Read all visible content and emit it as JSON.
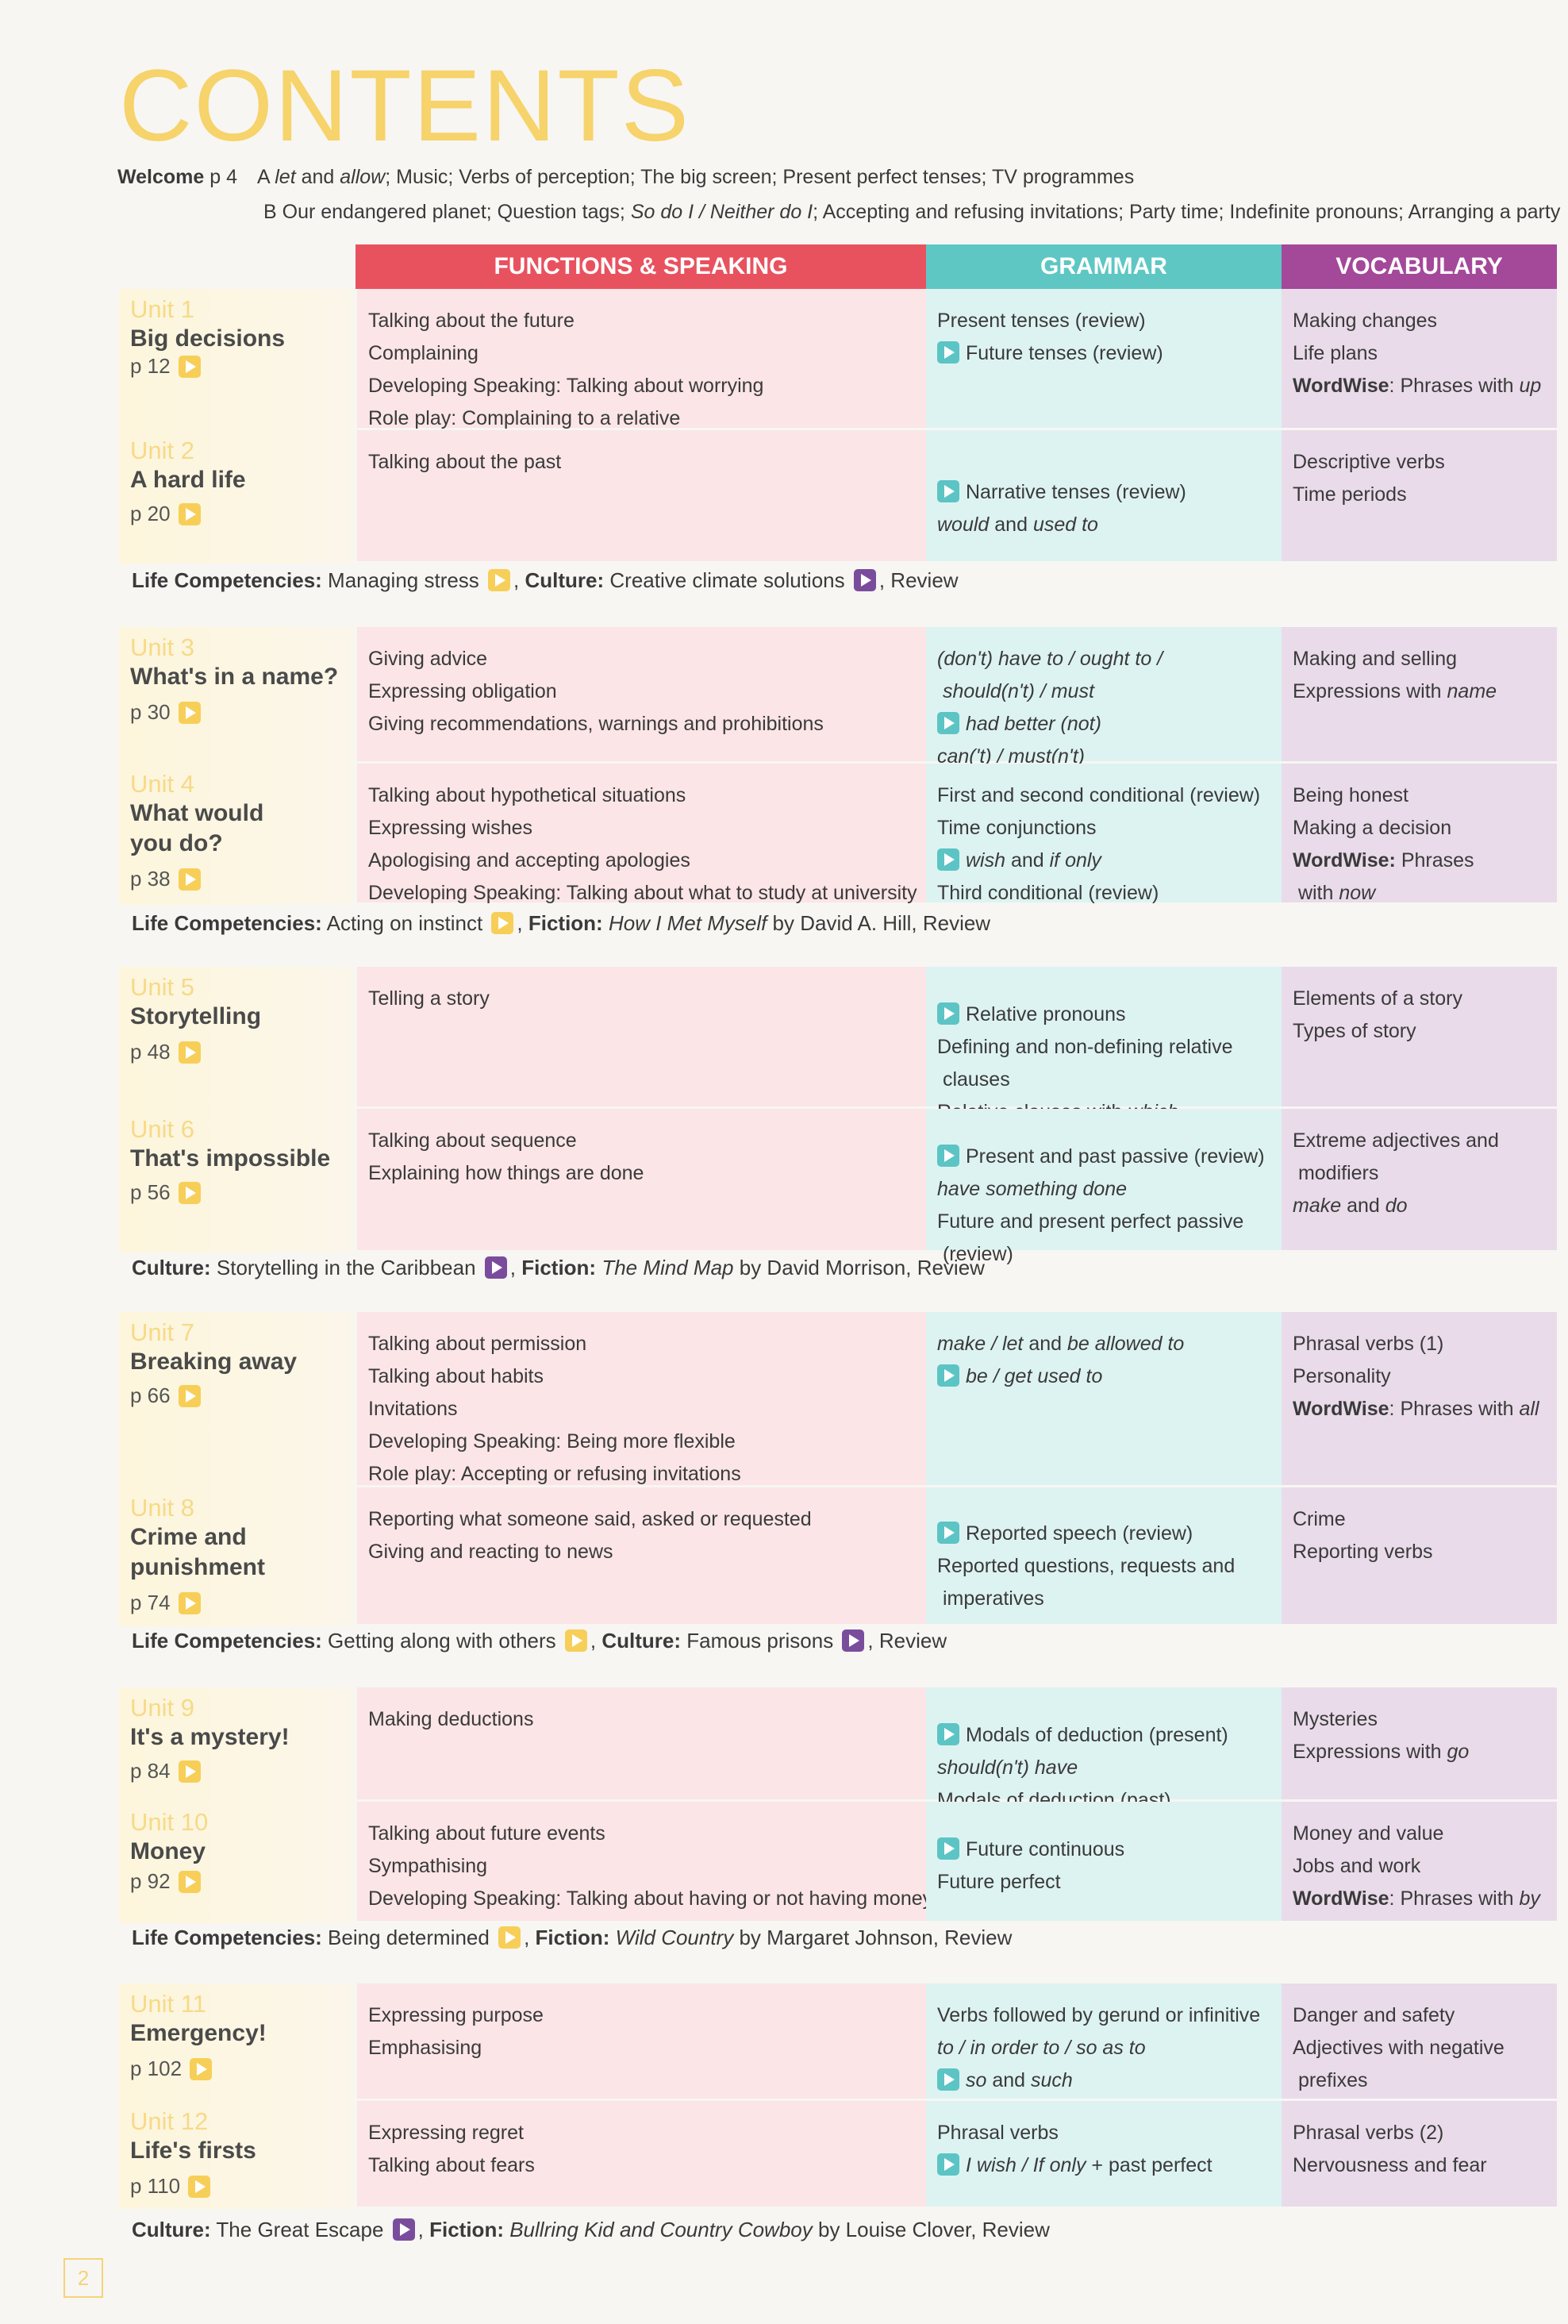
{
  "title": "CONTENTS",
  "welcome": {
    "label": "Welcome",
    "page": "p 4",
    "a": [
      {
        "t": "A "
      },
      {
        "t": "let",
        "s": "i"
      },
      {
        "t": " and "
      },
      {
        "t": "allow",
        "s": "i"
      },
      {
        "t": "; Music; Verbs of perception; The big screen; Present perfect tenses; TV programmes"
      }
    ],
    "b": [
      {
        "t": "B Our endangered planet; Question tags; "
      },
      {
        "t": "So do I / Neither do I",
        "s": "i"
      },
      {
        "t": "; Accepting and refusing invitations; Party time; Indefinite pronouns; Arranging a party"
      }
    ]
  },
  "headers": {
    "functions": "FUNCTIONS & SPEAKING",
    "grammar": "GRAMMAR",
    "vocabulary": "VOCABULARY"
  },
  "colors": {
    "functions": "#e8525f",
    "grammar": "#5ec7c4",
    "vocabulary": "#a4489a",
    "title": "#f6d36b"
  },
  "units": [
    {
      "label": "Unit 1",
      "title": "Big decisions",
      "page": "p 12",
      "functions": [
        [
          {
            "t": "Talking about the future"
          }
        ],
        [
          {
            "t": "Complaining"
          }
        ],
        [
          {
            "t": "Developing Speaking: Talking about worrying"
          }
        ],
        [
          {
            "t": "Role play: Complaining to a relative"
          }
        ]
      ],
      "grammar": [
        [
          {
            "t": "Present tenses (review)"
          }
        ],
        [
          {
            "icon": "teal"
          },
          {
            "t": "Future tenses (review)"
          }
        ]
      ],
      "vocabulary": [
        [
          {
            "t": "Making changes"
          }
        ],
        [
          {
            "t": "Life plans"
          }
        ],
        [
          {
            "t": "WordWise",
            "s": "b"
          },
          {
            "t": ": Phrases with "
          },
          {
            "t": "up",
            "s": "i"
          }
        ]
      ]
    },
    {
      "label": "Unit 2",
      "title": "A hard life",
      "page": "p 20",
      "functions": [
        [
          {
            "t": "Talking about the past"
          }
        ]
      ],
      "grammar": [
        [
          {
            "icon": "teal"
          },
          {
            "t": "Narrative tenses (review)"
          }
        ],
        [
          {
            "t": "would",
            "s": "i"
          },
          {
            "t": " and "
          },
          {
            "t": "used to",
            "s": "i"
          }
        ]
      ],
      "vocabulary": [
        [
          {
            "t": "Descriptive verbs"
          }
        ],
        [
          {
            "t": "Time periods"
          }
        ]
      ]
    },
    {
      "label": "Unit 3",
      "title": "What's in a name?",
      "page": "p 30",
      "functions": [
        [
          {
            "t": "Giving advice"
          }
        ],
        [
          {
            "t": "Expressing obligation"
          }
        ],
        [
          {
            "t": "Giving recommendations, warnings and prohibitions"
          }
        ]
      ],
      "grammar": [
        [
          {
            "t": "(don't) have to / ought to /",
            "s": "i"
          }
        ],
        [
          {
            "t": " should(n't) / must",
            "s": "i"
          }
        ],
        [
          {
            "icon": "teal"
          },
          {
            "t": "had better (not)",
            "s": "i"
          }
        ],
        [
          {
            "t": "can('t) / must(n't)",
            "s": "i"
          }
        ]
      ],
      "vocabulary": [
        [
          {
            "t": "Making and selling"
          }
        ],
        [
          {
            "t": "Expressions with "
          },
          {
            "t": "name",
            "s": "i"
          }
        ]
      ]
    },
    {
      "label": "Unit 4",
      "title": "What would\nyou do?",
      "page": "p 38",
      "functions": [
        [
          {
            "t": "Talking about hypothetical situations"
          }
        ],
        [
          {
            "t": "Expressing wishes"
          }
        ],
        [
          {
            "t": "Apologising and accepting apologies"
          }
        ],
        [
          {
            "t": "Developing Speaking: Talking about what to study at university"
          }
        ]
      ],
      "grammar": [
        [
          {
            "t": "First and second conditional (review)"
          }
        ],
        [
          {
            "t": "Time conjunctions"
          }
        ],
        [
          {
            "icon": "teal"
          },
          {
            "t": "wish",
            "s": "i"
          },
          {
            "t": " and "
          },
          {
            "t": "if only",
            "s": "i"
          }
        ],
        [
          {
            "t": "Third conditional (review)"
          }
        ]
      ],
      "vocabulary": [
        [
          {
            "t": "Being honest"
          }
        ],
        [
          {
            "t": "Making a decision"
          }
        ],
        [
          {
            "t": "WordWise:",
            "s": "b"
          },
          {
            "t": " Phrases"
          }
        ],
        [
          {
            "t": " with "
          },
          {
            "t": "now",
            "s": "i"
          }
        ]
      ]
    },
    {
      "label": "Unit 5",
      "title": "Storytelling",
      "page": "p 48",
      "functions": [
        [
          {
            "t": "Telling a story"
          }
        ]
      ],
      "grammar": [
        [
          {
            "icon": "teal"
          },
          {
            "t": "Relative pronouns"
          }
        ],
        [
          {
            "t": "Defining and non-defining relative"
          }
        ],
        [
          {
            "t": " clauses"
          }
        ],
        [
          {
            "t": "Relative clauses with "
          },
          {
            "t": "which",
            "s": "i"
          }
        ]
      ],
      "vocabulary": [
        [
          {
            "t": "Elements of a story"
          }
        ],
        [
          {
            "t": "Types of story"
          }
        ]
      ]
    },
    {
      "label": "Unit 6",
      "title": "That's impossible",
      "page": "p 56",
      "functions": [
        [
          {
            "t": "Talking about sequence"
          }
        ],
        [
          {
            "t": "Explaining how things are done"
          }
        ]
      ],
      "grammar": [
        [
          {
            "icon": "teal"
          },
          {
            "t": "Present and past passive (review)"
          }
        ],
        [
          {
            "t": "have something done",
            "s": "i"
          }
        ],
        [
          {
            "t": "Future and present perfect passive"
          }
        ],
        [
          {
            "t": " (review)"
          }
        ]
      ],
      "vocabulary": [
        [
          {
            "t": "Extreme adjectives and"
          }
        ],
        [
          {
            "t": " modifiers"
          }
        ],
        [
          {
            "t": "make",
            "s": "i"
          },
          {
            "t": " and "
          },
          {
            "t": "do",
            "s": "i"
          }
        ]
      ]
    },
    {
      "label": "Unit 7",
      "title": "Breaking away",
      "page": "p 66",
      "functions": [
        [
          {
            "t": "Talking about permission"
          }
        ],
        [
          {
            "t": "Talking about habits"
          }
        ],
        [
          {
            "t": "Invitations"
          }
        ],
        [
          {
            "t": "Developing Speaking: Being more flexible"
          }
        ],
        [
          {
            "t": "Role play: Accepting or refusing invitations"
          }
        ]
      ],
      "grammar": [
        [
          {
            "t": "make / let",
            "s": "i"
          },
          {
            "t": " and "
          },
          {
            "t": "be allowed to",
            "s": "i"
          }
        ],
        [
          {
            "icon": "teal"
          },
          {
            "t": "be / get used to",
            "s": "i"
          }
        ]
      ],
      "vocabulary": [
        [
          {
            "t": "Phrasal verbs (1)"
          }
        ],
        [
          {
            "t": "Personality"
          }
        ],
        [
          {
            "t": "WordWise",
            "s": "b"
          },
          {
            "t": ": Phrases with "
          },
          {
            "t": "all",
            "s": "i"
          }
        ]
      ]
    },
    {
      "label": "Unit 8",
      "title": "Crime and\npunishment",
      "page": "p 74",
      "functions": [
        [
          {
            "t": "Reporting what someone said, asked or requested"
          }
        ],
        [
          {
            "t": "Giving and reacting to news"
          }
        ]
      ],
      "grammar": [
        [
          {
            "icon": "teal"
          },
          {
            "t": "Reported speech (review)"
          }
        ],
        [
          {
            "t": "Reported questions, requests and"
          }
        ],
        [
          {
            "t": " imperatives"
          }
        ]
      ],
      "vocabulary": [
        [
          {
            "t": "Crime"
          }
        ],
        [
          {
            "t": "Reporting verbs"
          }
        ]
      ]
    },
    {
      "label": "Unit 9",
      "title": "It's a mystery!",
      "page": "p 84",
      "functions": [
        [
          {
            "t": "Making deductions"
          }
        ]
      ],
      "grammar": [
        [
          {
            "icon": "teal"
          },
          {
            "t": "Modals of deduction (present)"
          }
        ],
        [
          {
            "t": "should(n't) have",
            "s": "i"
          }
        ],
        [
          {
            "t": "Modals of deduction (past)"
          }
        ]
      ],
      "vocabulary": [
        [
          {
            "t": "Mysteries"
          }
        ],
        [
          {
            "t": "Expressions with "
          },
          {
            "t": "go",
            "s": "i"
          }
        ]
      ]
    },
    {
      "label": "Unit 10",
      "title": "Money",
      "page": "p 92",
      "functions": [
        [
          {
            "t": "Talking about future events"
          }
        ],
        [
          {
            "t": "Sympathising"
          }
        ],
        [
          {
            "t": "Developing Speaking: Talking about having or not having money"
          }
        ]
      ],
      "grammar": [
        [
          {
            "icon": "teal"
          },
          {
            "t": "Future continuous"
          }
        ],
        [
          {
            "t": "Future perfect"
          }
        ]
      ],
      "vocabulary": [
        [
          {
            "t": "Money and value"
          }
        ],
        [
          {
            "t": "Jobs and work"
          }
        ],
        [
          {
            "t": "WordWise",
            "s": "b"
          },
          {
            "t": ": Phrases with "
          },
          {
            "t": "by",
            "s": "i"
          }
        ]
      ]
    },
    {
      "label": "Unit 11",
      "title": "Emergency!",
      "page": "p 102",
      "functions": [
        [
          {
            "t": "Expressing purpose"
          }
        ],
        [
          {
            "t": "Emphasising"
          }
        ]
      ],
      "grammar": [
        [
          {
            "t": "Verbs followed by gerund or infinitive"
          }
        ],
        [
          {
            "t": "to / in order to / so as to",
            "s": "i"
          }
        ],
        [
          {
            "icon": "teal"
          },
          {
            "t": "so",
            "s": "i"
          },
          {
            "t": " and "
          },
          {
            "t": "such",
            "s": "i"
          }
        ]
      ],
      "vocabulary": [
        [
          {
            "t": "Danger and safety"
          }
        ],
        [
          {
            "t": "Adjectives with negative"
          }
        ],
        [
          {
            "t": " prefixes"
          }
        ]
      ]
    },
    {
      "label": "Unit 12",
      "title": "Life's firsts",
      "page": "p 110",
      "functions": [
        [
          {
            "t": "Expressing regret"
          }
        ],
        [
          {
            "t": "Talking about fears"
          }
        ]
      ],
      "grammar": [
        [
          {
            "t": "Phrasal verbs"
          }
        ],
        [
          {
            "icon": "teal"
          },
          {
            "t": "I wish / If only",
            "s": "i"
          },
          {
            "t": " + past perfect"
          }
        ]
      ],
      "vocabulary": [
        [
          {
            "t": "Phrasal verbs (2)"
          }
        ],
        [
          {
            "t": "Nervousness and fear"
          }
        ]
      ]
    }
  ],
  "extras": [
    [
      {
        "t": "Life Competencies:",
        "s": "b"
      },
      {
        "t": " Managing stress "
      },
      {
        "icon": "yellow"
      },
      {
        "t": ", "
      },
      {
        "t": "Culture:",
        "s": "b"
      },
      {
        "t": " Creative climate solutions "
      },
      {
        "icon": "purple"
      },
      {
        "t": ", Review"
      }
    ],
    [
      {
        "t": "Life Competencies:",
        "s": "b"
      },
      {
        "t": " Acting on instinct "
      },
      {
        "icon": "yellow"
      },
      {
        "t": ", "
      },
      {
        "t": "Fiction:",
        "s": "b"
      },
      {
        "t": " "
      },
      {
        "t": "How I Met Myself",
        "s": "i"
      },
      {
        "t": " by David A. Hill, Review"
      }
    ],
    [
      {
        "t": "Culture:",
        "s": "b"
      },
      {
        "t": " Storytelling in the Caribbean "
      },
      {
        "icon": "purple"
      },
      {
        "t": ", "
      },
      {
        "t": "Fiction:",
        "s": "b"
      },
      {
        "t": " "
      },
      {
        "t": "The Mind Map",
        "s": "i"
      },
      {
        "t": " by David Morrison, Review"
      }
    ],
    [
      {
        "t": "Life Competencies:",
        "s": "b"
      },
      {
        "t": " Getting along with others "
      },
      {
        "icon": "yellow"
      },
      {
        "t": ", "
      },
      {
        "t": "Culture:",
        "s": "b"
      },
      {
        "t": " Famous prisons "
      },
      {
        "icon": "purple"
      },
      {
        "t": ", Review"
      }
    ],
    [
      {
        "t": "Life Competencies:",
        "s": "b"
      },
      {
        "t": " Being determined "
      },
      {
        "icon": "yellow"
      },
      {
        "t": ", "
      },
      {
        "t": "Fiction:",
        "s": "b"
      },
      {
        "t": " "
      },
      {
        "t": "Wild Country",
        "s": "i"
      },
      {
        "t": " by Margaret Johnson, Review"
      }
    ],
    [
      {
        "t": "Culture:",
        "s": "b"
      },
      {
        "t": " The Great Escape "
      },
      {
        "icon": "purple"
      },
      {
        "t": ", "
      },
      {
        "t": "Fiction:",
        "s": "b"
      },
      {
        "t": " "
      },
      {
        "t": "Bullring Kid and Country Cowboy",
        "s": "i"
      },
      {
        "t": " by Louise Clover, Review"
      }
    ]
  ],
  "page_number": "2"
}
